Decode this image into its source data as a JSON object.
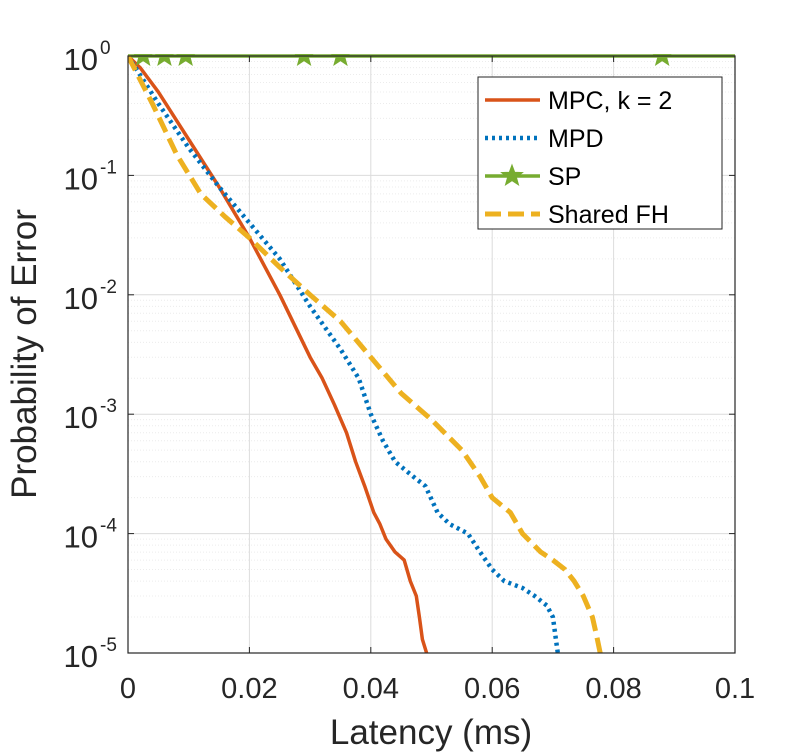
{
  "chart_data": {
    "type": "line",
    "xlabel": "Latency (ms)",
    "ylabel": "Probability of Error",
    "x_scale": "linear",
    "y_scale": "log",
    "xlim": [
      0,
      0.1
    ],
    "ylim": [
      1e-05,
      1
    ],
    "x_ticks": [
      0,
      0.02,
      0.04,
      0.06,
      0.08,
      0.1
    ],
    "x_tick_labels": [
      "0",
      "0.02",
      "0.04",
      "0.06",
      "0.08",
      "0.1"
    ],
    "y_ticks": [
      1e-05,
      0.0001,
      0.001,
      0.01,
      0.1,
      1
    ],
    "y_tick_labels": [
      {
        "base": "10",
        "exp": "-5"
      },
      {
        "base": "10",
        "exp": "-4"
      },
      {
        "base": "10",
        "exp": "-3"
      },
      {
        "base": "10",
        "exp": "-2"
      },
      {
        "base": "10",
        "exp": "-1"
      },
      {
        "base": "10",
        "exp": "0"
      }
    ],
    "grid": true,
    "legend_position": "top-right",
    "series": [
      {
        "name": "MPC, k = 2",
        "color": "#D95319",
        "style": "solid",
        "points": [
          [
            0,
            1
          ],
          [
            0.002,
            0.8
          ],
          [
            0.005,
            0.5
          ],
          [
            0.01,
            0.2
          ],
          [
            0.015,
            0.08
          ],
          [
            0.02,
            0.03
          ],
          [
            0.025,
            0.01
          ],
          [
            0.03,
            0.003
          ],
          [
            0.032,
            0.002
          ],
          [
            0.034,
            0.0012
          ],
          [
            0.036,
            0.0007
          ],
          [
            0.0375,
            0.0004
          ],
          [
            0.039,
            0.00025
          ],
          [
            0.0405,
            0.00015
          ],
          [
            0.0415,
            0.00012
          ],
          [
            0.0425,
            9e-05
          ],
          [
            0.044,
            7e-05
          ],
          [
            0.0455,
            6e-05
          ],
          [
            0.0465,
            4e-05
          ],
          [
            0.0475,
            3e-05
          ],
          [
            0.048,
            2e-05
          ],
          [
            0.0485,
            1.3e-05
          ],
          [
            0.0492,
            1e-05
          ]
        ]
      },
      {
        "name": "MPD",
        "color": "#0072BD",
        "style": "dotted",
        "points": [
          [
            0,
            1
          ],
          [
            0.005,
            0.4
          ],
          [
            0.01,
            0.17
          ],
          [
            0.015,
            0.08
          ],
          [
            0.02,
            0.04
          ],
          [
            0.025,
            0.02
          ],
          [
            0.03,
            0.008
          ],
          [
            0.035,
            0.0035
          ],
          [
            0.038,
            0.002
          ],
          [
            0.04,
            0.001
          ],
          [
            0.042,
            0.0006
          ],
          [
            0.044,
            0.0004
          ],
          [
            0.047,
            0.0003
          ],
          [
            0.049,
            0.00025
          ],
          [
            0.051,
            0.00015
          ],
          [
            0.053,
            0.00012
          ],
          [
            0.056,
            0.0001
          ],
          [
            0.058,
            7e-05
          ],
          [
            0.06,
            5e-05
          ],
          [
            0.062,
            4e-05
          ],
          [
            0.065,
            3.5e-05
          ],
          [
            0.067,
            3e-05
          ],
          [
            0.069,
            2.5e-05
          ],
          [
            0.07,
            2e-05
          ],
          [
            0.0705,
            1.3e-05
          ],
          [
            0.0708,
            1e-05
          ]
        ]
      },
      {
        "name": "SP",
        "color": "#77AC30",
        "style": "solid-star",
        "points": [
          [
            0,
            1
          ],
          [
            0.1,
            1
          ]
        ],
        "markers_x": [
          0.0025,
          0.006,
          0.0095,
          0.029,
          0.035,
          0.088
        ]
      },
      {
        "name": "Shared FH",
        "color": "#EDB120",
        "style": "dashed",
        "points": [
          [
            0,
            1
          ],
          [
            0.004,
            0.4
          ],
          [
            0.008,
            0.15
          ],
          [
            0.012,
            0.07
          ],
          [
            0.016,
            0.045
          ],
          [
            0.02,
            0.03
          ],
          [
            0.025,
            0.017
          ],
          [
            0.03,
            0.01
          ],
          [
            0.035,
            0.006
          ],
          [
            0.04,
            0.003
          ],
          [
            0.045,
            0.0015
          ],
          [
            0.05,
            0.0009
          ],
          [
            0.055,
            0.0005
          ],
          [
            0.058,
            0.0003
          ],
          [
            0.06,
            0.0002
          ],
          [
            0.063,
            0.00015
          ],
          [
            0.065,
            0.0001
          ],
          [
            0.068,
            7e-05
          ],
          [
            0.07,
            6e-05
          ],
          [
            0.072,
            5e-05
          ],
          [
            0.0735,
            4e-05
          ],
          [
            0.075,
            3e-05
          ],
          [
            0.0765,
            2e-05
          ],
          [
            0.0772,
            1.4e-05
          ],
          [
            0.0778,
            1e-05
          ]
        ]
      }
    ]
  }
}
